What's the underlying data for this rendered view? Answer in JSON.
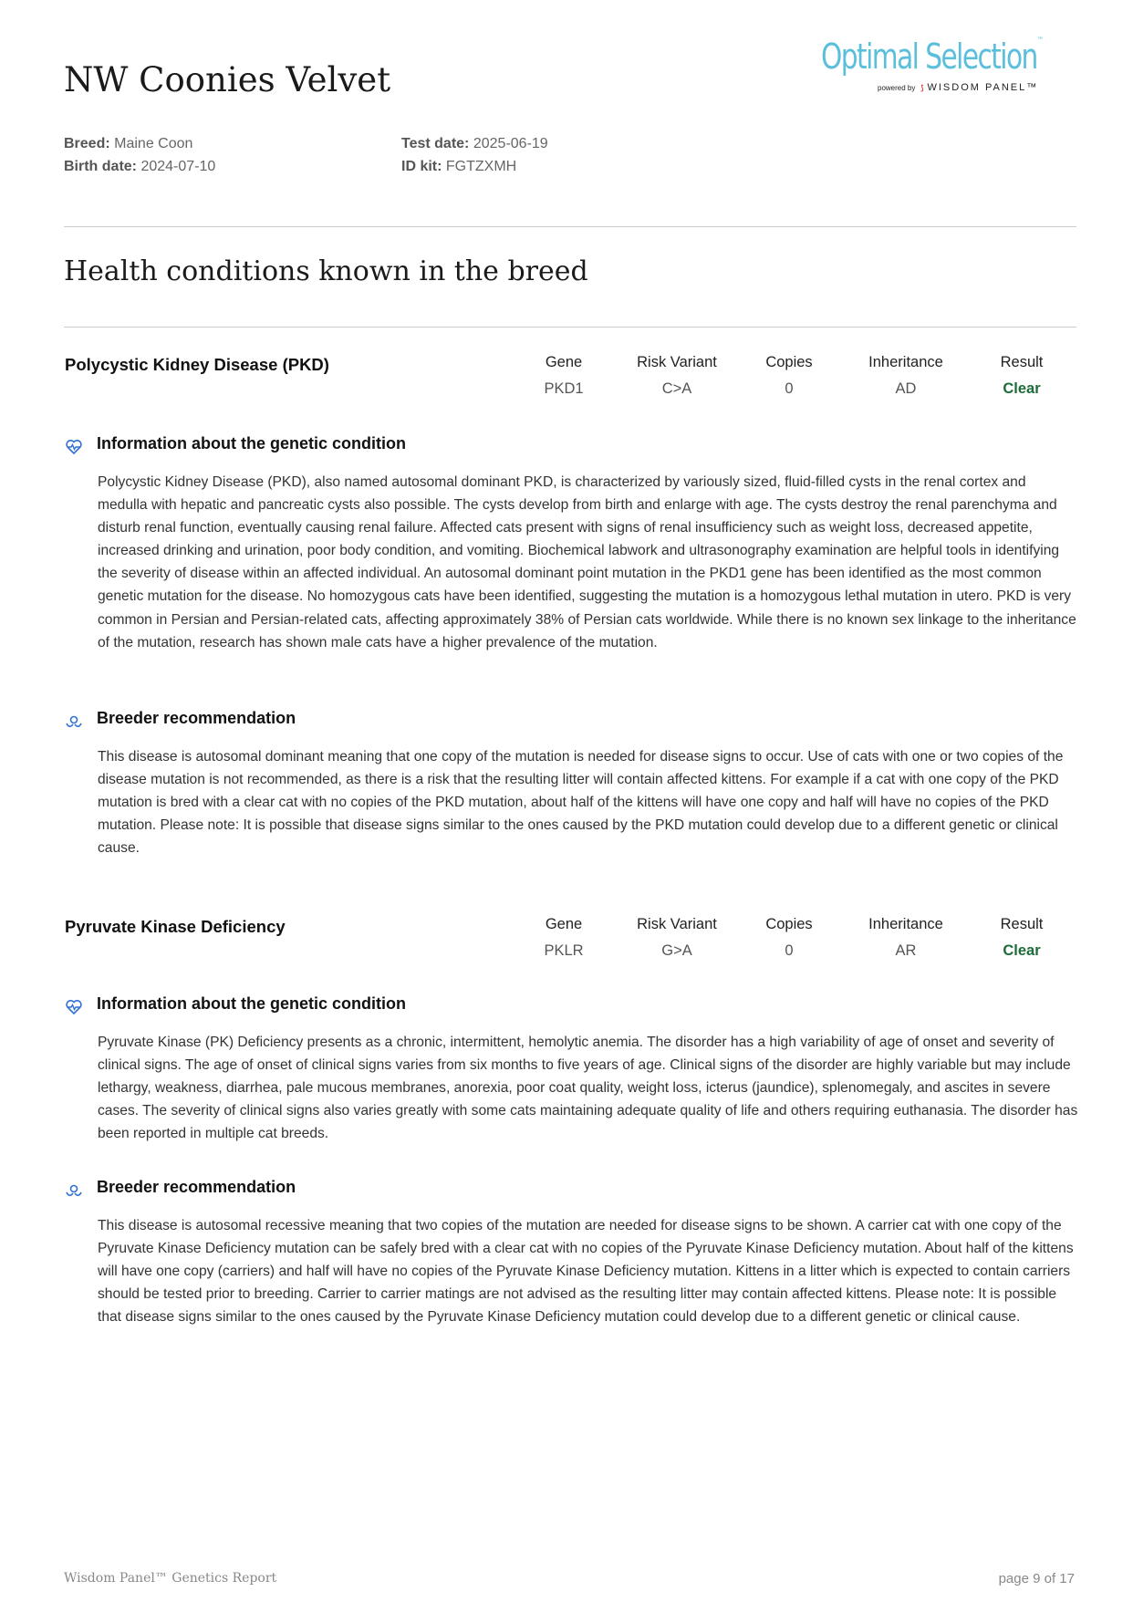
{
  "header": {
    "title": "NW Coonies Velvet",
    "logo": {
      "main": "Optimal Selection",
      "tm": "™",
      "powered_by": "powered by",
      "brand": "WISDOM PANEL™"
    },
    "breed_label": "Breed:",
    "breed": "Maine Coon",
    "birth_label": "Birth date:",
    "birth": "2024-07-10",
    "test_label": "Test date:",
    "test": "2025-06-19",
    "kit_label": "ID kit:",
    "kit": "FGTZXMH"
  },
  "section_title": "Health conditions known in the breed",
  "columns": {
    "gene": "Gene",
    "variant": "Risk Variant",
    "copies": "Copies",
    "inheritance": "Inheritance",
    "result": "Result"
  },
  "colors": {
    "clear": "#1e6b3a",
    "icon": "#2f6fd6",
    "logo": "#5bbfdc"
  },
  "conditions": [
    {
      "name": "Polycystic Kidney Disease (PKD)",
      "gene": "PKD1",
      "variant": "C>A",
      "copies": "0",
      "inheritance": "AD",
      "result": "Clear",
      "info_title": "Information about the genetic condition",
      "info": "Polycystic Kidney Disease (PKD), also named autosomal dominant PKD, is characterized by variously sized, fluid-filled cysts in the renal cortex and medulla with hepatic and pancreatic cysts also possible. The cysts develop from birth and enlarge with age. The cysts destroy the renal parenchyma and disturb renal function, eventually causing renal failure. Affected cats present with signs of renal insufficiency such as weight loss, decreased appetite, increased drinking and urination, poor body condition, and vomiting. Biochemical labwork and ultrasonography examination are helpful tools in identifying the severity of disease within an affected individual. An autosomal dominant point mutation in the PKD1 gene has been identified as the most common genetic mutation for the disease. No homozygous cats have been identified, suggesting the mutation is a homozygous lethal mutation in utero. PKD is very common in Persian and Persian-related cats, affecting approximately 38% of Persian cats worldwide. While there is no known sex linkage to the inheritance of the mutation, research has shown male cats have a higher prevalence of the mutation.",
      "rec_title": "Breeder recommendation",
      "rec": "This disease is autosomal dominant meaning that one copy of the mutation is needed for disease signs to occur. Use of cats with one or two copies of the disease mutation is not recommended, as there is a risk that the resulting litter will contain affected kittens. For example if a cat with one copy of the PKD mutation is bred with a clear cat with no copies of the PKD mutation, about half of the kittens will have one copy and half will have no copies of the PKD mutation. Please note: It is possible that disease signs similar to the ones caused by the PKD mutation could develop due to a different genetic or clinical cause."
    },
    {
      "name": "Pyruvate Kinase Deficiency",
      "gene": "PKLR",
      "variant": "G>A",
      "copies": "0",
      "inheritance": "AR",
      "result": "Clear",
      "info_title": "Information about the genetic condition",
      "info": "Pyruvate Kinase (PK) Deficiency presents as a chronic, intermittent, hemolytic anemia. The disorder has a high variability of age of onset and severity of clinical signs. The age of onset of clinical signs varies from six months to five years of age. Clinical signs of the disorder are highly variable but may include lethargy, weakness, diarrhea, pale mucous membranes, anorexia, poor coat quality, weight loss, icterus (jaundice), splenomegaly, and ascites in severe cases. The severity of clinical signs also varies greatly with some cats maintaining adequate quality of life and others requiring euthanasia. The disorder has been reported in multiple cat breeds.",
      "rec_title": "Breeder recommendation",
      "rec": "This disease is autosomal recessive meaning that two copies of the mutation are needed for disease signs to be shown. A carrier cat with one copy of the Pyruvate Kinase Deficiency mutation can be safely bred with a clear cat with no copies of the Pyruvate Kinase Deficiency mutation. About half of the kittens will have one copy (carriers) and half will have no copies of the Pyruvate Kinase Deficiency mutation. Kittens in a litter which is expected to contain carriers should be tested prior to breeding. Carrier to carrier matings are not advised as the resulting litter may contain affected kittens. Please note: It is possible that disease signs similar to the ones caused by the Pyruvate Kinase Deficiency mutation could develop due to a different genetic or clinical cause."
    }
  ],
  "footer": {
    "left": "Wisdom Panel™ Genetics Report",
    "right": "page 9 of 17"
  }
}
